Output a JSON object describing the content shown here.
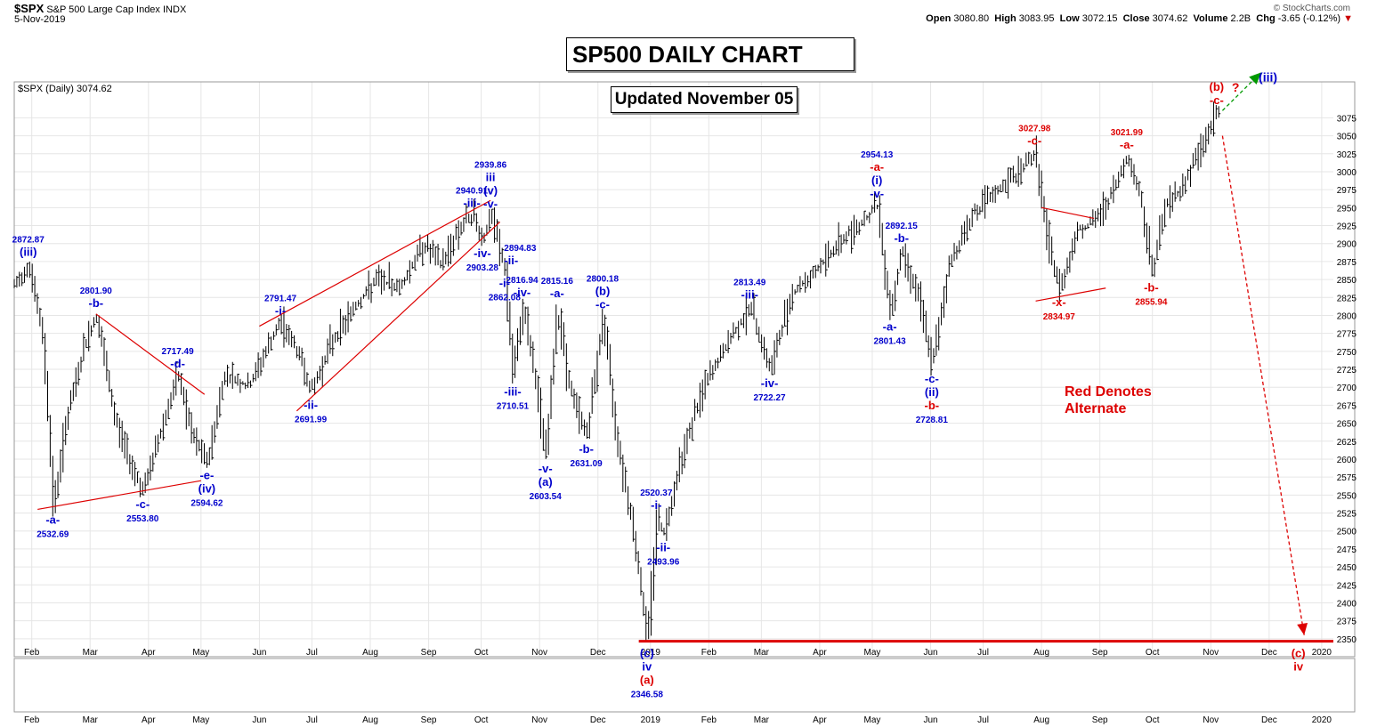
{
  "header": {
    "symbol": "$SPX",
    "name": "S&P 500 Large Cap Index",
    "exchange": "INDX",
    "date": "5-Nov-2019",
    "watermark": "© StockCharts.com",
    "open_label": "Open",
    "open": "3080.80",
    "high_label": "High",
    "high": "3083.95",
    "low_label": "Low",
    "low": "3072.15",
    "close_label": "Close",
    "close": "3074.62",
    "volume_label": "Volume",
    "volume": "2.2B",
    "chg_label": "Chg",
    "chg": "-3.65 (-0.12%)",
    "legend": "$SPX (Daily) 3074.62"
  },
  "boxes": {
    "title": "SP500 DAILY CHART",
    "updated": "Updated November 05"
  },
  "note": {
    "line1": "Red Denotes",
    "line2": "Alternate"
  },
  "colors": {
    "blue": "#0000cc",
    "red": "#dd0000",
    "green": "#009900",
    "bars": "#000000",
    "grid": "#e6e6e6"
  },
  "chart_data": {
    "type": "bar",
    "ylim": [
      2325,
      3125
    ],
    "y_ticks": [
      2350,
      2375,
      2400,
      2425,
      2450,
      2475,
      2500,
      2525,
      2550,
      2575,
      2600,
      2625,
      2650,
      2675,
      2700,
      2725,
      2750,
      2775,
      2800,
      2825,
      2850,
      2875,
      2900,
      2925,
      2950,
      2975,
      3000,
      3025,
      3050,
      3075
    ],
    "x_range": [
      0,
      113
    ],
    "x_axis_labels": [
      {
        "x": 1.5,
        "label": "Feb"
      },
      {
        "x": 6.5,
        "label": "Mar"
      },
      {
        "x": 11.5,
        "label": "Apr"
      },
      {
        "x": 16,
        "label": "May"
      },
      {
        "x": 21,
        "label": "Jun"
      },
      {
        "x": 25.5,
        "label": "Jul"
      },
      {
        "x": 30.5,
        "label": "Aug"
      },
      {
        "x": 35.5,
        "label": "Sep"
      },
      {
        "x": 40,
        "label": "Oct"
      },
      {
        "x": 45,
        "label": "Nov"
      },
      {
        "x": 50,
        "label": "Dec"
      },
      {
        "x": 54.5,
        "label": "2019"
      },
      {
        "x": 59.5,
        "label": "Feb"
      },
      {
        "x": 64,
        "label": "Mar"
      },
      {
        "x": 69,
        "label": "Apr"
      },
      {
        "x": 73.5,
        "label": "May"
      },
      {
        "x": 78.5,
        "label": "Jun"
      },
      {
        "x": 83,
        "label": "Jul"
      },
      {
        "x": 88,
        "label": "Aug"
      },
      {
        "x": 93,
        "label": "Sep"
      },
      {
        "x": 97.5,
        "label": "Oct"
      },
      {
        "x": 102.5,
        "label": "Nov"
      },
      {
        "x": 107.5,
        "label": "Dec"
      },
      {
        "x": 112,
        "label": "2020"
      }
    ],
    "lower_axis_labels": [
      {
        "x": 1.5,
        "label": "Feb"
      },
      {
        "x": 6.5,
        "label": "Mar"
      },
      {
        "x": 11.5,
        "label": "Apr"
      },
      {
        "x": 16,
        "label": "May"
      },
      {
        "x": 21,
        "label": "Jun"
      },
      {
        "x": 25.5,
        "label": "Jul"
      },
      {
        "x": 30.5,
        "label": "Aug"
      },
      {
        "x": 35.5,
        "label": "Sep"
      },
      {
        "x": 40,
        "label": "Oct"
      },
      {
        "x": 45,
        "label": "Nov"
      },
      {
        "x": 50,
        "label": "Dec"
      },
      {
        "x": 54.5,
        "label": "2019"
      },
      {
        "x": 59.5,
        "label": "Feb"
      },
      {
        "x": 64,
        "label": "Mar"
      },
      {
        "x": 69,
        "label": "Apr"
      },
      {
        "x": 73.5,
        "label": "May"
      },
      {
        "x": 78.5,
        "label": "Jun"
      },
      {
        "x": 83,
        "label": "Jul"
      },
      {
        "x": 88,
        "label": "Aug"
      },
      {
        "x": 93,
        "label": "Sep"
      },
      {
        "x": 97.5,
        "label": "Oct"
      },
      {
        "x": 102.5,
        "label": "Nov"
      },
      {
        "x": 107.5,
        "label": "Dec"
      },
      {
        "x": 112,
        "label": "2020"
      }
    ],
    "price_path": [
      [
        0,
        2840
      ],
      [
        1.2,
        2872.87
      ],
      [
        2.5,
        2760
      ],
      [
        3.3,
        2532.69
      ],
      [
        4.5,
        2660
      ],
      [
        6,
        2760
      ],
      [
        7,
        2801.9
      ],
      [
        8.5,
        2660
      ],
      [
        9.8,
        2600
      ],
      [
        11,
        2553.8
      ],
      [
        12.5,
        2640
      ],
      [
        14,
        2717.49
      ],
      [
        15.2,
        2630
      ],
      [
        16.5,
        2594.62
      ],
      [
        18,
        2720
      ],
      [
        20,
        2700
      ],
      [
        21.5,
        2750
      ],
      [
        22.8,
        2791.47
      ],
      [
        24.5,
        2740
      ],
      [
        25.4,
        2691.99
      ],
      [
        27,
        2760
      ],
      [
        29,
        2810
      ],
      [
        31,
        2850
      ],
      [
        33,
        2840
      ],
      [
        35,
        2900
      ],
      [
        36.5,
        2870
      ],
      [
        38,
        2920
      ],
      [
        39.2,
        2940.91
      ],
      [
        40.1,
        2903.28
      ],
      [
        40.8,
        2939.86
      ],
      [
        41.5,
        2894.83
      ],
      [
        42,
        2862.08
      ],
      [
        42.7,
        2710.51
      ],
      [
        43.5,
        2816.94
      ],
      [
        44.5,
        2720
      ],
      [
        45.5,
        2603.54
      ],
      [
        46.5,
        2815.16
      ],
      [
        47.5,
        2700
      ],
      [
        49,
        2631.09
      ],
      [
        50.4,
        2800.18
      ],
      [
        51.5,
        2640
      ],
      [
        53,
        2500
      ],
      [
        54.2,
        2346.58
      ],
      [
        55,
        2520.37
      ],
      [
        55.6,
        2493.96
      ],
      [
        57,
        2600
      ],
      [
        59,
        2700
      ],
      [
        61,
        2760
      ],
      [
        63,
        2813.49
      ],
      [
        64.7,
        2722.27
      ],
      [
        66.5,
        2830
      ],
      [
        68.5,
        2860
      ],
      [
        70.5,
        2900
      ],
      [
        72.5,
        2930
      ],
      [
        73.9,
        2954.13
      ],
      [
        75,
        2801.43
      ],
      [
        76,
        2892.15
      ],
      [
        77.5,
        2820
      ],
      [
        78.6,
        2728.81
      ],
      [
        80,
        2870
      ],
      [
        82,
        2940
      ],
      [
        84,
        2970
      ],
      [
        86,
        3000
      ],
      [
        87.4,
        3027.98
      ],
      [
        88.5,
        2900
      ],
      [
        89.5,
        2834.97
      ],
      [
        91,
        2920
      ],
      [
        92.5,
        2930
      ],
      [
        94,
        2970
      ],
      [
        95.3,
        3021.99
      ],
      [
        96.5,
        2960
      ],
      [
        97.4,
        2855.94
      ],
      [
        98.5,
        2950
      ],
      [
        100,
        2980
      ],
      [
        101.5,
        3030
      ],
      [
        103,
        3083.95
      ],
      [
        103.3,
        3074.62
      ]
    ],
    "annotations": [
      {
        "x": 1.2,
        "y": 2872.87,
        "pos": "above",
        "color": "blue",
        "lines": [
          "2872.87",
          "(iii)"
        ]
      },
      {
        "x": 3.3,
        "y": 2532.69,
        "pos": "below",
        "color": "blue",
        "lines": [
          "-a-",
          "2532.69"
        ]
      },
      {
        "x": 7,
        "y": 2801.9,
        "pos": "above",
        "color": "blue",
        "lines": [
          "2801.90",
          "-b-"
        ]
      },
      {
        "x": 11,
        "y": 2553.8,
        "pos": "below",
        "color": "blue",
        "lines": [
          "-c-",
          "2553.80"
        ]
      },
      {
        "x": 14,
        "y": 2717.49,
        "pos": "above",
        "color": "blue",
        "lines": [
          "2717.49",
          "-d-"
        ]
      },
      {
        "x": 16.5,
        "y": 2594.62,
        "pos": "below",
        "color": "blue",
        "lines": [
          "-e-",
          "(iv)",
          "2594.62"
        ]
      },
      {
        "x": 22.8,
        "y": 2791.47,
        "pos": "above",
        "color": "blue",
        "lines": [
          "2791.47",
          "-i-"
        ]
      },
      {
        "x": 25.4,
        "y": 2691.99,
        "pos": "below",
        "color": "blue",
        "lines": [
          "-ii-",
          "2691.99"
        ]
      },
      {
        "x": 39.2,
        "y": 2940.91,
        "pos": "above",
        "color": "blue",
        "lines": [
          "2940.91",
          "-iii-"
        ]
      },
      {
        "x": 40.1,
        "y": 2903.28,
        "pos": "below",
        "color": "blue",
        "lines": [
          "-iv-",
          "2903.28"
        ]
      },
      {
        "x": 40.8,
        "y": 2939.86,
        "pos": "above",
        "color": "blue",
        "lines": [
          "2939.86",
          "iii",
          "(v)",
          "-v-"
        ]
      },
      {
        "x": 41.5,
        "y": 2894.83,
        "pos": "right",
        "color": "blue",
        "lines": [
          "2894.83",
          "-ii-"
        ]
      },
      {
        "x": 42,
        "y": 2862.08,
        "pos": "below",
        "color": "blue",
        "lines": [
          "-i-",
          "2862.08"
        ]
      },
      {
        "x": 42.7,
        "y": 2710.51,
        "pos": "below",
        "color": "blue",
        "lines": [
          "-iii-",
          "2710.51"
        ]
      },
      {
        "x": 43.5,
        "y": 2816.94,
        "pos": "above",
        "color": "blue",
        "lines": [
          "2816.94",
          "-iv-"
        ]
      },
      {
        "x": 45.5,
        "y": 2603.54,
        "pos": "below",
        "color": "blue",
        "lines": [
          "-v-",
          "(a)",
          "2603.54"
        ]
      },
      {
        "x": 46.5,
        "y": 2815.16,
        "pos": "above",
        "color": "blue",
        "lines": [
          "2815.16",
          "-a-"
        ]
      },
      {
        "x": 49,
        "y": 2631.09,
        "pos": "below",
        "color": "blue",
        "lines": [
          "-b-",
          "2631.09"
        ]
      },
      {
        "x": 50.4,
        "y": 2800.18,
        "pos": "above",
        "color": "blue",
        "lines": [
          "2800.18",
          "(b)",
          "-c-"
        ]
      },
      {
        "x": 55,
        "y": 2520.37,
        "pos": "above",
        "color": "blue",
        "lines": [
          "2520.37",
          "-i-"
        ]
      },
      {
        "x": 55.6,
        "y": 2493.96,
        "pos": "below",
        "color": "blue",
        "lines": [
          "-ii-",
          "2493.96"
        ]
      },
      {
        "x": 63,
        "y": 2813.49,
        "pos": "above",
        "color": "blue",
        "lines": [
          "2813.49",
          "-iii-"
        ]
      },
      {
        "x": 64.7,
        "y": 2722.27,
        "pos": "below",
        "color": "blue",
        "lines": [
          "-iv-",
          "2722.27"
        ]
      },
      {
        "x": 73.9,
        "y": 2954.13,
        "pos": "above",
        "color": "blue",
        "lines": [
          "2954.13",
          "-a-",
          "(i)",
          "-v-"
        ],
        "line_colors": [
          "blue",
          "red",
          "blue",
          "blue"
        ]
      },
      {
        "x": 75,
        "y": 2801.43,
        "pos": "below",
        "color": "blue",
        "lines": [
          "-a-",
          "2801.43"
        ]
      },
      {
        "x": 76,
        "y": 2892.15,
        "pos": "above",
        "color": "blue",
        "lines": [
          "2892.15",
          "-b-"
        ]
      },
      {
        "x": 78.6,
        "y": 2728.81,
        "pos": "below",
        "color": "blue",
        "lines": [
          "-c-",
          "(ii)",
          "-b-",
          "2728.81"
        ],
        "line_colors": [
          "blue",
          "blue",
          "red",
          "blue"
        ]
      },
      {
        "x": 87.4,
        "y": 3027.98,
        "pos": "above",
        "color": "red",
        "lines": [
          "3027.98",
          "-c-"
        ]
      },
      {
        "x": 89.5,
        "y": 2834.97,
        "pos": "below",
        "color": "red",
        "lines": [
          "-x-",
          "2834.97"
        ]
      },
      {
        "x": 95.3,
        "y": 3021.99,
        "pos": "above",
        "color": "red",
        "lines": [
          "3021.99",
          "-a-"
        ]
      },
      {
        "x": 97.4,
        "y": 2855.94,
        "pos": "below",
        "color": "red",
        "lines": [
          "-b-",
          "2855.94"
        ]
      },
      {
        "x": 103,
        "y": 3083.95,
        "pos": "above",
        "color": "red",
        "lines": [
          "(b)",
          "-c-"
        ]
      }
    ],
    "low_label": {
      "x": 54.2,
      "lines": [
        "(c)",
        "iv",
        "(a)",
        "2346.58"
      ],
      "line_colors": [
        "blue",
        "blue",
        "red",
        "blue"
      ]
    },
    "end_label": {
      "x": 110,
      "lines": [
        "(c)",
        "iv"
      ],
      "color": "red"
    },
    "question_mark": "?",
    "top_target": "(iii)",
    "trendlines": [
      {
        "from": [
          2,
          2530
        ],
        "to": [
          16,
          2570
        ]
      },
      {
        "from": [
          7,
          2802
        ],
        "to": [
          16.3,
          2690
        ]
      },
      {
        "from": [
          21,
          2785
        ],
        "to": [
          40.8,
          2960
        ]
      },
      {
        "from": [
          24.2,
          2667
        ],
        "to": [
          41.6,
          2930
        ]
      },
      {
        "from": [
          88,
          2950
        ],
        "to": [
          92.5,
          2935
        ]
      },
      {
        "from": [
          87.5,
          2820
        ],
        "to": [
          93.5,
          2838
        ]
      }
    ],
    "support_line": {
      "y": 2346.58,
      "from": 53.5,
      "to": 113
    },
    "green_arrow": {
      "from": [
        103.5,
        3085
      ],
      "to": [
        106.8,
        3138
      ]
    },
    "red_arrow": {
      "from": [
        103.5,
        3050
      ],
      "to": [
        110.5,
        2355
      ]
    }
  }
}
